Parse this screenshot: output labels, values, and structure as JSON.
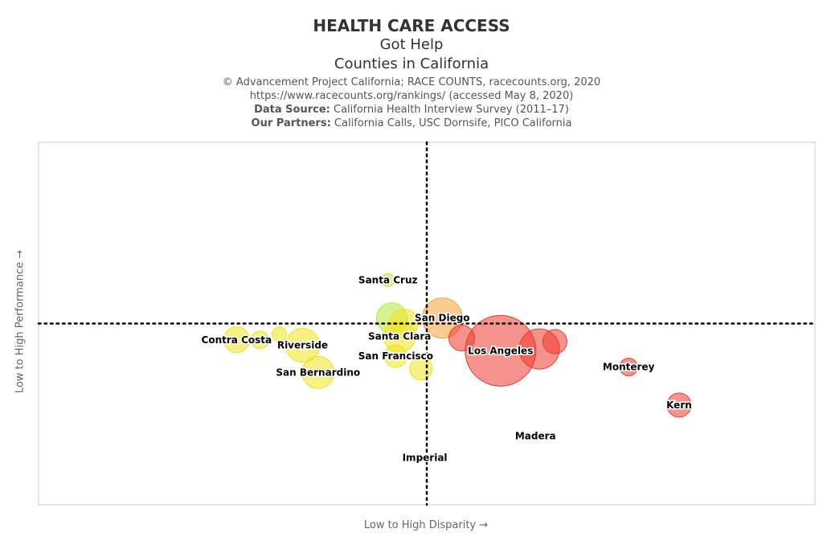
{
  "header": {
    "title": "HEALTH CARE ACCESS",
    "subtitle": "Got Help",
    "subtitle2": "Counties in California",
    "credit": "© Advancement Project California; RACE COUNTS, racecounts.org, 2020",
    "url": "https://www.racecounts.org/rankings/ (accessed May 8, 2020)",
    "source_label": "Data Source:",
    "source": "California Health Interview Survey (2011–17)",
    "partners_label": "Our Partners:",
    "partners": "California Calls, USC Dornsife, PICO California"
  },
  "chart_data": {
    "type": "scatter",
    "variant": "bubble",
    "xlabel": "Low to High Disparity →",
    "ylabel": "Low to High Performance →",
    "xlim": [
      -10,
      10
    ],
    "ylim": [
      -10,
      10
    ],
    "divider_x": 0,
    "divider_y": 0,
    "points": [
      {
        "x": -4.9,
        "y": -0.9,
        "r": 16,
        "color": "#f0e41d",
        "label": "Contra Costa"
      },
      {
        "x": -4.3,
        "y": -0.9,
        "r": 11,
        "color": "#f0e41d",
        "label": ""
      },
      {
        "x": -3.8,
        "y": -0.6,
        "r": 9,
        "color": "#f0e41d",
        "label": ""
      },
      {
        "x": -3.2,
        "y": -1.2,
        "r": 21,
        "color": "#f0e41d",
        "label": "Riverside"
      },
      {
        "x": -2.8,
        "y": -2.7,
        "r": 20,
        "color": "#f0e41d",
        "label": "San Bernardino"
      },
      {
        "x": -1.0,
        "y": 2.4,
        "r": 8,
        "color": "#b5ea3c",
        "label": "Santa Cruz"
      },
      {
        "x": -0.9,
        "y": 0.3,
        "r": 19,
        "color": "#b5ea3c",
        "label": ""
      },
      {
        "x": -0.6,
        "y": 0.0,
        "r": 18,
        "color": "#f0e41d",
        "label": ""
      },
      {
        "x": -0.7,
        "y": -0.7,
        "r": 20,
        "color": "#f0e41d",
        "label": "Santa Clara"
      },
      {
        "x": -0.8,
        "y": -1.8,
        "r": 14,
        "color": "#f0e41d",
        "label": "San Francisco"
      },
      {
        "x": -0.15,
        "y": -2.5,
        "r": 14,
        "color": "#f0e41d",
        "label": ""
      },
      {
        "x": 0.4,
        "y": 0.3,
        "r": 25,
        "color": "#f5a238",
        "label": "San Diego"
      },
      {
        "x": 0.9,
        "y": -0.8,
        "r": 16,
        "color": "#ee3a30",
        "label": ""
      },
      {
        "x": 1.9,
        "y": -1.5,
        "r": 44,
        "color": "#ee3a30",
        "label": "Los Angeles"
      },
      {
        "x": 2.9,
        "y": -1.4,
        "r": 25,
        "color": "#ee3a30",
        "label": ""
      },
      {
        "x": 3.3,
        "y": -1.0,
        "r": 15,
        "color": "#ee3a30",
        "label": ""
      },
      {
        "x": 5.2,
        "y": -2.4,
        "r": 11,
        "color": "#ee3a30",
        "label": "Monterey"
      },
      {
        "x": 6.5,
        "y": -4.5,
        "r": 15,
        "color": "#ee3a30",
        "label": "Kern"
      },
      {
        "x": 2.8,
        "y": -6.2,
        "r": 2,
        "color": "#ee3a30",
        "label": "Madera"
      },
      {
        "x": -0.05,
        "y": -7.4,
        "r": 2,
        "color": "#f0e41d",
        "label": "Imperial"
      }
    ]
  }
}
